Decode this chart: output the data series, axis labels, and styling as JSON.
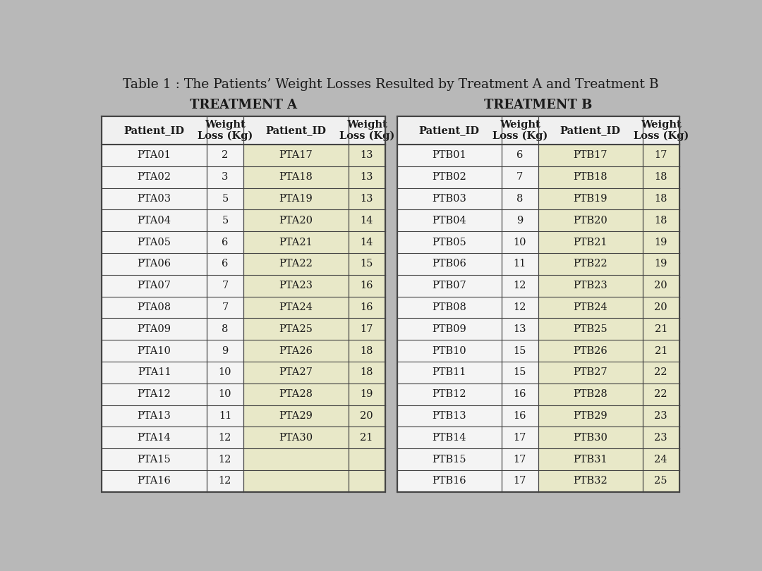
{
  "title": "Table 1 : The Patients’ Weight Losses Resulted by Treatment A and Treatment B",
  "treatment_a_label": "TREATMENT A",
  "treatment_b_label": "TREATMENT B",
  "col_headers": [
    "Patient_ID",
    "Weight\nLoss (Kg)",
    "Patient_ID",
    "Weight\nLoss (Kg)"
  ],
  "pta_left": [
    [
      "PTA01",
      "2"
    ],
    [
      "PTA02",
      "3"
    ],
    [
      "PTA03",
      "5"
    ],
    [
      "PTA04",
      "5"
    ],
    [
      "PTA05",
      "6"
    ],
    [
      "PTA06",
      "6"
    ],
    [
      "PTA07",
      "7"
    ],
    [
      "PTA08",
      "7"
    ],
    [
      "PTA09",
      "8"
    ],
    [
      "PTA10",
      "9"
    ],
    [
      "PTA11",
      "10"
    ],
    [
      "PTA12",
      "10"
    ],
    [
      "PTA13",
      "11"
    ],
    [
      "PTA14",
      "12"
    ],
    [
      "PTA15",
      "12"
    ],
    [
      "PTA16",
      "12"
    ]
  ],
  "pta_right": [
    [
      "PTA17",
      "13"
    ],
    [
      "PTA18",
      "13"
    ],
    [
      "PTA19",
      "13"
    ],
    [
      "PTA20",
      "14"
    ],
    [
      "PTA21",
      "14"
    ],
    [
      "PTA22",
      "15"
    ],
    [
      "PTA23",
      "16"
    ],
    [
      "PTA24",
      "16"
    ],
    [
      "PTA25",
      "17"
    ],
    [
      "PTA26",
      "18"
    ],
    [
      "PTA27",
      "18"
    ],
    [
      "PTA28",
      "19"
    ],
    [
      "PTA29",
      "20"
    ],
    [
      "PTA30",
      "21"
    ],
    [
      "",
      ""
    ],
    [
      "",
      ""
    ]
  ],
  "ptb_left": [
    [
      "PTB01",
      "6"
    ],
    [
      "PTB02",
      "7"
    ],
    [
      "PTB03",
      "8"
    ],
    [
      "PTB04",
      "9"
    ],
    [
      "PTB05",
      "10"
    ],
    [
      "PTB06",
      "11"
    ],
    [
      "PTB07",
      "12"
    ],
    [
      "PTB08",
      "12"
    ],
    [
      "PTB09",
      "13"
    ],
    [
      "PTB10",
      "15"
    ],
    [
      "PTB11",
      "15"
    ],
    [
      "PTB12",
      "16"
    ],
    [
      "PTB13",
      "16"
    ],
    [
      "PTB14",
      "17"
    ],
    [
      "PTB15",
      "17"
    ],
    [
      "PTB16",
      "17"
    ]
  ],
  "ptb_right": [
    [
      "PTB17",
      "17"
    ],
    [
      "PTB18",
      "18"
    ],
    [
      "PTB19",
      "18"
    ],
    [
      "PTB20",
      "18"
    ],
    [
      "PTB21",
      "19"
    ],
    [
      "PTB22",
      "19"
    ],
    [
      "PTB23",
      "20"
    ],
    [
      "PTB24",
      "20"
    ],
    [
      "PTB25",
      "21"
    ],
    [
      "PTB26",
      "21"
    ],
    [
      "PTB27",
      "22"
    ],
    [
      "PTB28",
      "22"
    ],
    [
      "PTB29",
      "23"
    ],
    [
      "PTB30",
      "23"
    ],
    [
      "PTB31",
      "24"
    ],
    [
      "PTB32",
      "25"
    ]
  ],
  "bg_color": "#b8b8b8",
  "cell_left_bg": "#f4f4f4",
  "cell_right_bg": "#e8e8c8",
  "header_bg": "#f0f0f0",
  "line_color": "#444444",
  "text_color": "#1a1a1a",
  "title_fontsize": 13.5,
  "treat_label_fontsize": 13,
  "header_fontsize": 10.5,
  "cell_fontsize": 10.5
}
